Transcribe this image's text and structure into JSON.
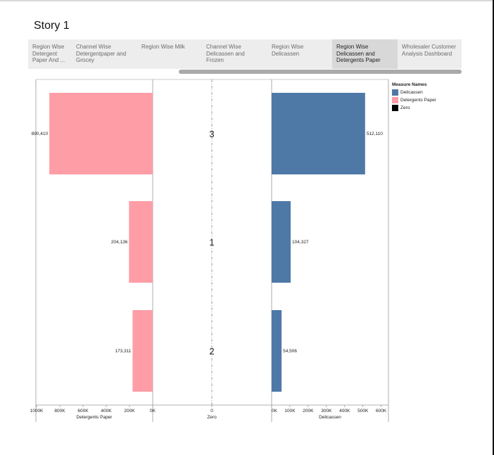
{
  "story": {
    "title": "Story 1"
  },
  "tabs": [
    {
      "label": "Region Wise Detergent Paper And ...",
      "active": false
    },
    {
      "label": "Channel Wise Detergentpaper and Grocey",
      "active": false
    },
    {
      "label": "Region Wise Milk",
      "active": false
    },
    {
      "label": "Channel Wise Delicassen and Frozen",
      "active": false
    },
    {
      "label": "Region Wise Delicassen",
      "active": false
    },
    {
      "label": "Region Wise Delicassen and Detergents Paper",
      "active": true
    },
    {
      "label": "Wholesaler Customer Analysis Dashboard",
      "active": false
    }
  ],
  "legend": {
    "title": "Measure Names",
    "items": [
      {
        "label": "Delicassen",
        "color": "#4e79a7"
      },
      {
        "label": "Detergents Paper",
        "color": "#ff9da7"
      },
      {
        "label": "Zero",
        "color": "#000000"
      }
    ]
  },
  "chart_data": {
    "type": "bar",
    "categories": [
      "3",
      "1",
      "2"
    ],
    "series": [
      {
        "name": "Detergents Paper",
        "values": [
          890410,
          204136,
          173311
        ],
        "color": "#ff9da7"
      },
      {
        "name": "Zero",
        "values": [
          0,
          0,
          0
        ],
        "color": "#000000"
      },
      {
        "name": "Delicassen",
        "values": [
          512110,
          104327,
          54506
        ],
        "color": "#4e79a7"
      }
    ],
    "value_labels": {
      "Detergents Paper": [
        "890,410",
        "204,136",
        "173,311"
      ],
      "Delicassen": [
        "512,110",
        "104,327",
        "54,506"
      ]
    },
    "axes": {
      "detergents": {
        "label": "Detergents Paper",
        "range": [
          1000000,
          0
        ],
        "reversed": true,
        "ticks": [
          1000000,
          800000,
          600000,
          400000,
          200000,
          0
        ],
        "tick_labels": [
          "1000K",
          "800K",
          "600K",
          "400K",
          "200K",
          "0K"
        ]
      },
      "zero": {
        "label": "Zero",
        "ticks": [
          0
        ],
        "tick_labels": [
          "0"
        ]
      },
      "delicassen": {
        "label": "Delicassen",
        "range": [
          0,
          640000
        ],
        "ticks": [
          0,
          100000,
          200000,
          300000,
          400000,
          500000,
          600000
        ],
        "tick_labels": [
          "0K",
          "100K",
          "200K",
          "300K",
          "400K",
          "500K",
          "600K"
        ]
      }
    },
    "grid": false,
    "legend_position": "right"
  }
}
